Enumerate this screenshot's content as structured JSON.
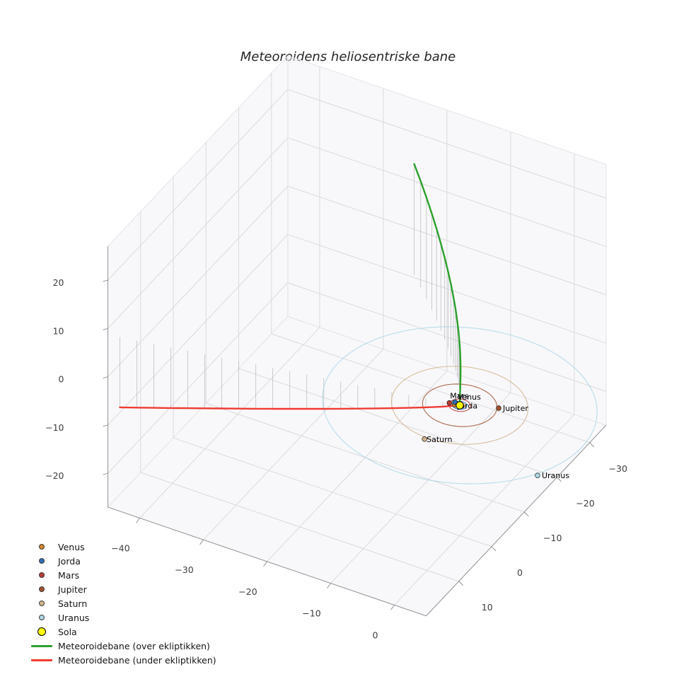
{
  "title": "Meteoroidens heliosentriske bane",
  "chart_data": {
    "type": "line",
    "projection": "3d",
    "title": "Meteoroidens heliosentriske bane",
    "grid": true,
    "axes": {
      "x": {
        "range": [
          -45,
          5
        ],
        "ticks": [
          {
            "v": -40,
            "label": "−40"
          },
          {
            "v": -30,
            "label": "−30"
          },
          {
            "v": -20,
            "label": "−20"
          },
          {
            "v": -10,
            "label": "−10"
          },
          {
            "v": 0,
            "label": "0"
          }
        ]
      },
      "y": {
        "range": [
          -35,
          20
        ],
        "ticks": [
          {
            "v": -30,
            "label": "−30"
          },
          {
            "v": -20,
            "label": "−20"
          },
          {
            "v": -10,
            "label": "−10"
          },
          {
            "v": 0,
            "label": "0"
          },
          {
            "v": 10,
            "label": "10"
          }
        ]
      },
      "z": {
        "range": [
          -27,
          27
        ],
        "ticks": [
          {
            "v": 20,
            "label": "20"
          },
          {
            "v": 10,
            "label": "10"
          },
          {
            "v": 0,
            "label": "0"
          },
          {
            "v": -10,
            "label": "−10"
          },
          {
            "v": -20,
            "label": "−20"
          }
        ]
      }
    },
    "sun": {
      "name": "Sola",
      "color": "#ffff00",
      "position": [
        0,
        0,
        0
      ]
    },
    "planets": [
      {
        "name": "Venus",
        "color": "#d4832b",
        "orbit_radius": 0.72,
        "position": [
          -0.68,
          0.25,
          0
        ],
        "label_offset": [
          4,
          -7
        ]
      },
      {
        "name": "Jorda",
        "color": "#2e6db4",
        "orbit_radius": 1.0,
        "position": [
          -0.94,
          -0.34,
          0
        ],
        "label_offset": [
          4,
          9
        ]
      },
      {
        "name": "Mars",
        "color": "#b93a32",
        "orbit_radius": 1.52,
        "position": [
          -1.5,
          0.26,
          0
        ],
        "label_offset": [
          1,
          -6
        ]
      },
      {
        "name": "Jupiter",
        "color": "#a0522d",
        "orbit_radius": 5.2,
        "position": [
          4.94,
          -2.28,
          0
        ],
        "label_offset": [
          6,
          4
        ]
      },
      {
        "name": "Saturn",
        "color": "#d2b48c",
        "orbit_radius": 9.54,
        "position": [
          -0.4,
          10.0,
          0
        ],
        "label_offset": [
          3,
          4
        ]
      },
      {
        "name": "Uranus",
        "color": "#add8e6",
        "orbit_radius": 19.2,
        "position": [
          17.1,
          9.5,
          0
        ],
        "label_offset": [
          6,
          4
        ]
      }
    ],
    "stems": {
      "color": "#b9b9b9"
    },
    "trajectory_over": {
      "label": "Meteoroidebane (over ekliptikken)",
      "color": "#2ca02c",
      "points": [
        [
          0,
          0,
          0
        ],
        [
          -0.03,
          -0.11,
          1.8
        ],
        [
          -0.13,
          -0.4,
          3.25
        ],
        [
          -0.31,
          -0.82,
          4.58
        ],
        [
          -0.58,
          -1.38,
          5.86
        ],
        [
          -0.95,
          -2.06,
          7.08
        ],
        [
          -1.41,
          -2.87,
          8.27
        ],
        [
          -1.99,
          -3.78,
          9.42
        ],
        [
          -2.66,
          -4.81,
          10.56
        ],
        [
          -3.45,
          -5.94,
          11.67
        ],
        [
          -4.35,
          -7.18,
          12.76
        ],
        [
          -5.37,
          -8.53,
          13.84
        ],
        [
          -6.5,
          -9.97,
          14.9
        ],
        [
          -7.75,
          -11.51,
          15.95
        ],
        [
          -9.13,
          -13.16,
          16.99
        ],
        [
          -10.62,
          -14.89,
          18.01
        ],
        [
          -12.24,
          -16.73,
          19.03
        ],
        [
          -13.99,
          -18.66,
          20.03
        ],
        [
          -15.86,
          -20.68,
          21.03
        ],
        [
          -17.86,
          -22.8,
          22.02
        ],
        [
          -20.0,
          -25.0,
          23.0
        ]
      ]
    },
    "trajectory_under": {
      "label": "Meteoroidebane (under ekliptikken)",
      "color": "#ef3b33",
      "points": [
        [
          -48.0,
          10.5,
          -14.5
        ],
        [
          -45.6,
          9.98,
          -13.85
        ],
        [
          -43.2,
          9.45,
          -13.19
        ],
        [
          -40.8,
          8.93,
          -12.53
        ],
        [
          -38.4,
          8.4,
          -11.86
        ],
        [
          -36.0,
          7.88,
          -11.19
        ],
        [
          -33.6,
          7.35,
          -10.52
        ],
        [
          -31.2,
          6.83,
          -9.84
        ],
        [
          -28.8,
          6.3,
          -9.16
        ],
        [
          -26.4,
          5.78,
          -8.47
        ],
        [
          -24.0,
          5.25,
          -7.77
        ],
        [
          -21.6,
          4.73,
          -7.07
        ],
        [
          -19.2,
          4.2,
          -6.36
        ],
        [
          -16.8,
          3.68,
          -5.64
        ],
        [
          -14.4,
          3.15,
          -4.91
        ],
        [
          -12.0,
          2.63,
          -4.16
        ],
        [
          -9.6,
          2.1,
          -3.41
        ],
        [
          -7.2,
          1.58,
          -2.63
        ],
        [
          -4.8,
          1.05,
          -1.83
        ],
        [
          -2.4,
          0.53,
          -0.98
        ],
        [
          0,
          0,
          0
        ]
      ]
    }
  },
  "legend": {
    "items": [
      {
        "label": "Venus",
        "color": "#d4832b",
        "type": "dot"
      },
      {
        "label": "Jorda",
        "color": "#2e6db4",
        "type": "dot"
      },
      {
        "label": "Mars",
        "color": "#b93a32",
        "type": "dot"
      },
      {
        "label": "Jupiter",
        "color": "#a0522d",
        "type": "dot"
      },
      {
        "label": "Saturn",
        "color": "#d2b48c",
        "type": "dot"
      },
      {
        "label": "Uranus",
        "color": "#add8e6",
        "type": "dot"
      },
      {
        "label": "Sola",
        "color": "#ffff00",
        "type": "dot-large"
      },
      {
        "label": "Meteoroidebane (over ekliptikken)",
        "color": "#2ca02c",
        "type": "line"
      },
      {
        "label": "Meteoroidebane (under ekliptikken)",
        "color": "#ef3b33",
        "type": "line"
      }
    ]
  }
}
